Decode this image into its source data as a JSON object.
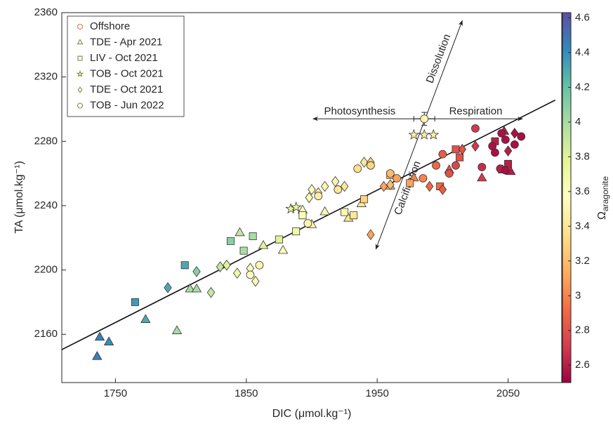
{
  "chart_data": {
    "type": "scatter",
    "x_label": "DIC (μmol.kg⁻¹)",
    "y_label": "TA (μmol.kg⁻¹)",
    "colorbar_symbol": "Ω",
    "colorbar_subscript": "aragonite",
    "xlim": [
      1709,
      2091
    ],
    "xticks": [
      1750,
      1850,
      1950,
      2050
    ],
    "ylim": [
      2130,
      2360
    ],
    "yticks": [
      2160,
      2200,
      2240,
      2280,
      2320,
      2360
    ],
    "clim": [
      2.5,
      4.63
    ],
    "cticks": [
      2.6,
      2.8,
      3,
      3.2,
      3.4,
      3.6,
      3.8,
      4,
      4.2,
      4.4,
      4.6
    ],
    "colormap": [
      "#9e0142",
      "#d53e4f",
      "#f46d43",
      "#fdae61",
      "#fee08b",
      "#ffffbf",
      "#e6f598",
      "#abdda4",
      "#66c2a5",
      "#3288bd",
      "#5e4fa2"
    ],
    "legend": "upper left",
    "grid": false,
    "series": [
      {
        "name": "Offshore",
        "marker": "circle",
        "color": "#e07a3a",
        "x": [
          1986
        ],
        "y": [
          2294
        ],
        "omega": [
          3.5
        ],
        "xerr": [
          8
        ],
        "yerr": [
          4
        ]
      },
      {
        "name": "TDE - Apr 2021",
        "marker": "triangle",
        "color": "#8a8a3a",
        "x": [
          1738,
          1745,
          1736,
          1773,
          1797,
          1807,
          1812,
          1845,
          1863,
          1878,
          1893,
          1900,
          1910,
          1928,
          1938,
          1960,
          1978,
          2005,
          2030,
          2052,
          2046,
          2047
        ],
        "y": [
          2158,
          2155,
          2146,
          2169,
          2162,
          2188,
          2188,
          2223,
          2215,
          2212,
          2237,
          2228,
          2236,
          2232,
          2241,
          2252,
          2257,
          2262,
          2257,
          2261,
          2262,
          2286
        ],
        "omega": [
          4.45,
          4.4,
          4.45,
          4.3,
          4.0,
          4.0,
          4.0,
          3.9,
          3.8,
          3.6,
          3.6,
          3.5,
          3.5,
          3.4,
          3.4,
          3.1,
          3.0,
          2.8,
          2.7,
          2.6,
          2.6,
          2.6
        ]
      },
      {
        "name": "LIV - Oct 2021",
        "marker": "square",
        "color": "#8a8a3a",
        "x": [
          1765,
          1803,
          1838,
          1855,
          1848,
          1875,
          1888,
          1893,
          1925,
          1932,
          1940,
          1960,
          1975,
          1998,
          2010,
          2013,
          2040,
          2050
        ],
        "y": [
          2180,
          2203,
          2218,
          2221,
          2212,
          2219,
          2224,
          2234,
          2236,
          2234,
          2244,
          2259,
          2254,
          2252,
          2275,
          2270,
          2280,
          2266
        ],
        "omega": [
          4.35,
          4.3,
          4.1,
          4.0,
          4.0,
          3.8,
          3.7,
          3.6,
          3.5,
          3.4,
          3.3,
          3.2,
          3.1,
          2.9,
          2.8,
          2.8,
          2.6,
          2.6
        ]
      },
      {
        "name": "TOB - Oct 2021",
        "marker": "star",
        "color": "#8a8a3a",
        "x": [
          1884,
          1888,
          1978,
          1986,
          1993
        ],
        "y": [
          2238,
          2239,
          2284,
          2284,
          2284
        ],
        "omega": [
          3.75,
          3.75,
          3.45,
          3.45,
          3.45
        ]
      },
      {
        "name": "TDE - Oct 2021",
        "marker": "diamond",
        "color": "#8a8a3a",
        "x": [
          1790,
          1812,
          1823,
          1830,
          1835,
          1843,
          1853,
          1857,
          1898,
          1900,
          1905,
          1910,
          1918,
          1925,
          1940,
          1945,
          1960,
          1945,
          1955,
          1990,
          2000,
          2015,
          2025,
          2050,
          2055
        ],
        "y": [
          2189,
          2199,
          2186,
          2202,
          2203,
          2198,
          2201,
          2193,
          2245,
          2250,
          2248,
          2252,
          2255,
          2252,
          2267,
          2267,
          2253,
          2222,
          2252,
          2252,
          2250,
          2275,
          2277,
          2274,
          2285
        ],
        "omega": [
          4.3,
          4.1,
          3.9,
          3.9,
          3.8,
          3.7,
          3.6,
          3.5,
          3.6,
          3.6,
          3.5,
          3.5,
          3.5,
          3.4,
          3.4,
          3.3,
          3.2,
          3.1,
          3.1,
          2.9,
          2.85,
          2.8,
          2.7,
          2.6,
          2.55
        ]
      },
      {
        "name": "TOB - Jun 2022",
        "marker": "circle",
        "color": "#8a8a3a",
        "x": [
          1853,
          1860,
          1897,
          1905,
          1920,
          1935,
          1945,
          1960,
          1965,
          1985,
          1995,
          2000,
          2005,
          2010,
          2025,
          2030,
          2040,
          2045,
          2048,
          2055,
          2060,
          2044,
          2048,
          2038
        ],
        "y": [
          2197,
          2203,
          2229,
          2246,
          2250,
          2263,
          2265,
          2260,
          2257,
          2257,
          2265,
          2272,
          2260,
          2265,
          2288,
          2264,
          2273,
          2285,
          2281,
          2278,
          2283,
          2263,
          2262,
          2277
        ],
        "omega": [
          3.6,
          3.5,
          3.5,
          3.45,
          3.4,
          3.35,
          3.3,
          3.2,
          3.1,
          3.0,
          2.9,
          2.85,
          2.8,
          2.75,
          2.7,
          2.65,
          2.55,
          2.55,
          2.55,
          2.55,
          2.55,
          2.6,
          2.55,
          2.55
        ]
      }
    ],
    "fit_line": {
      "x": [
        1709,
        2086
      ],
      "y": [
        2150.5,
        2305.6
      ]
    },
    "arrows": [
      {
        "from": {
          "x": 1901,
          "y": 2294
        },
        "to": {
          "x": 2061,
          "y": 2294
        },
        "labels": [
          "Photosynthesis",
          "Respiration"
        ]
      },
      {
        "from": {
          "x": 1949,
          "y": 2213
        },
        "to": {
          "x": 2015,
          "y": 2355
        },
        "labels": [
          "Calcification",
          "Dissolution"
        ]
      }
    ]
  }
}
